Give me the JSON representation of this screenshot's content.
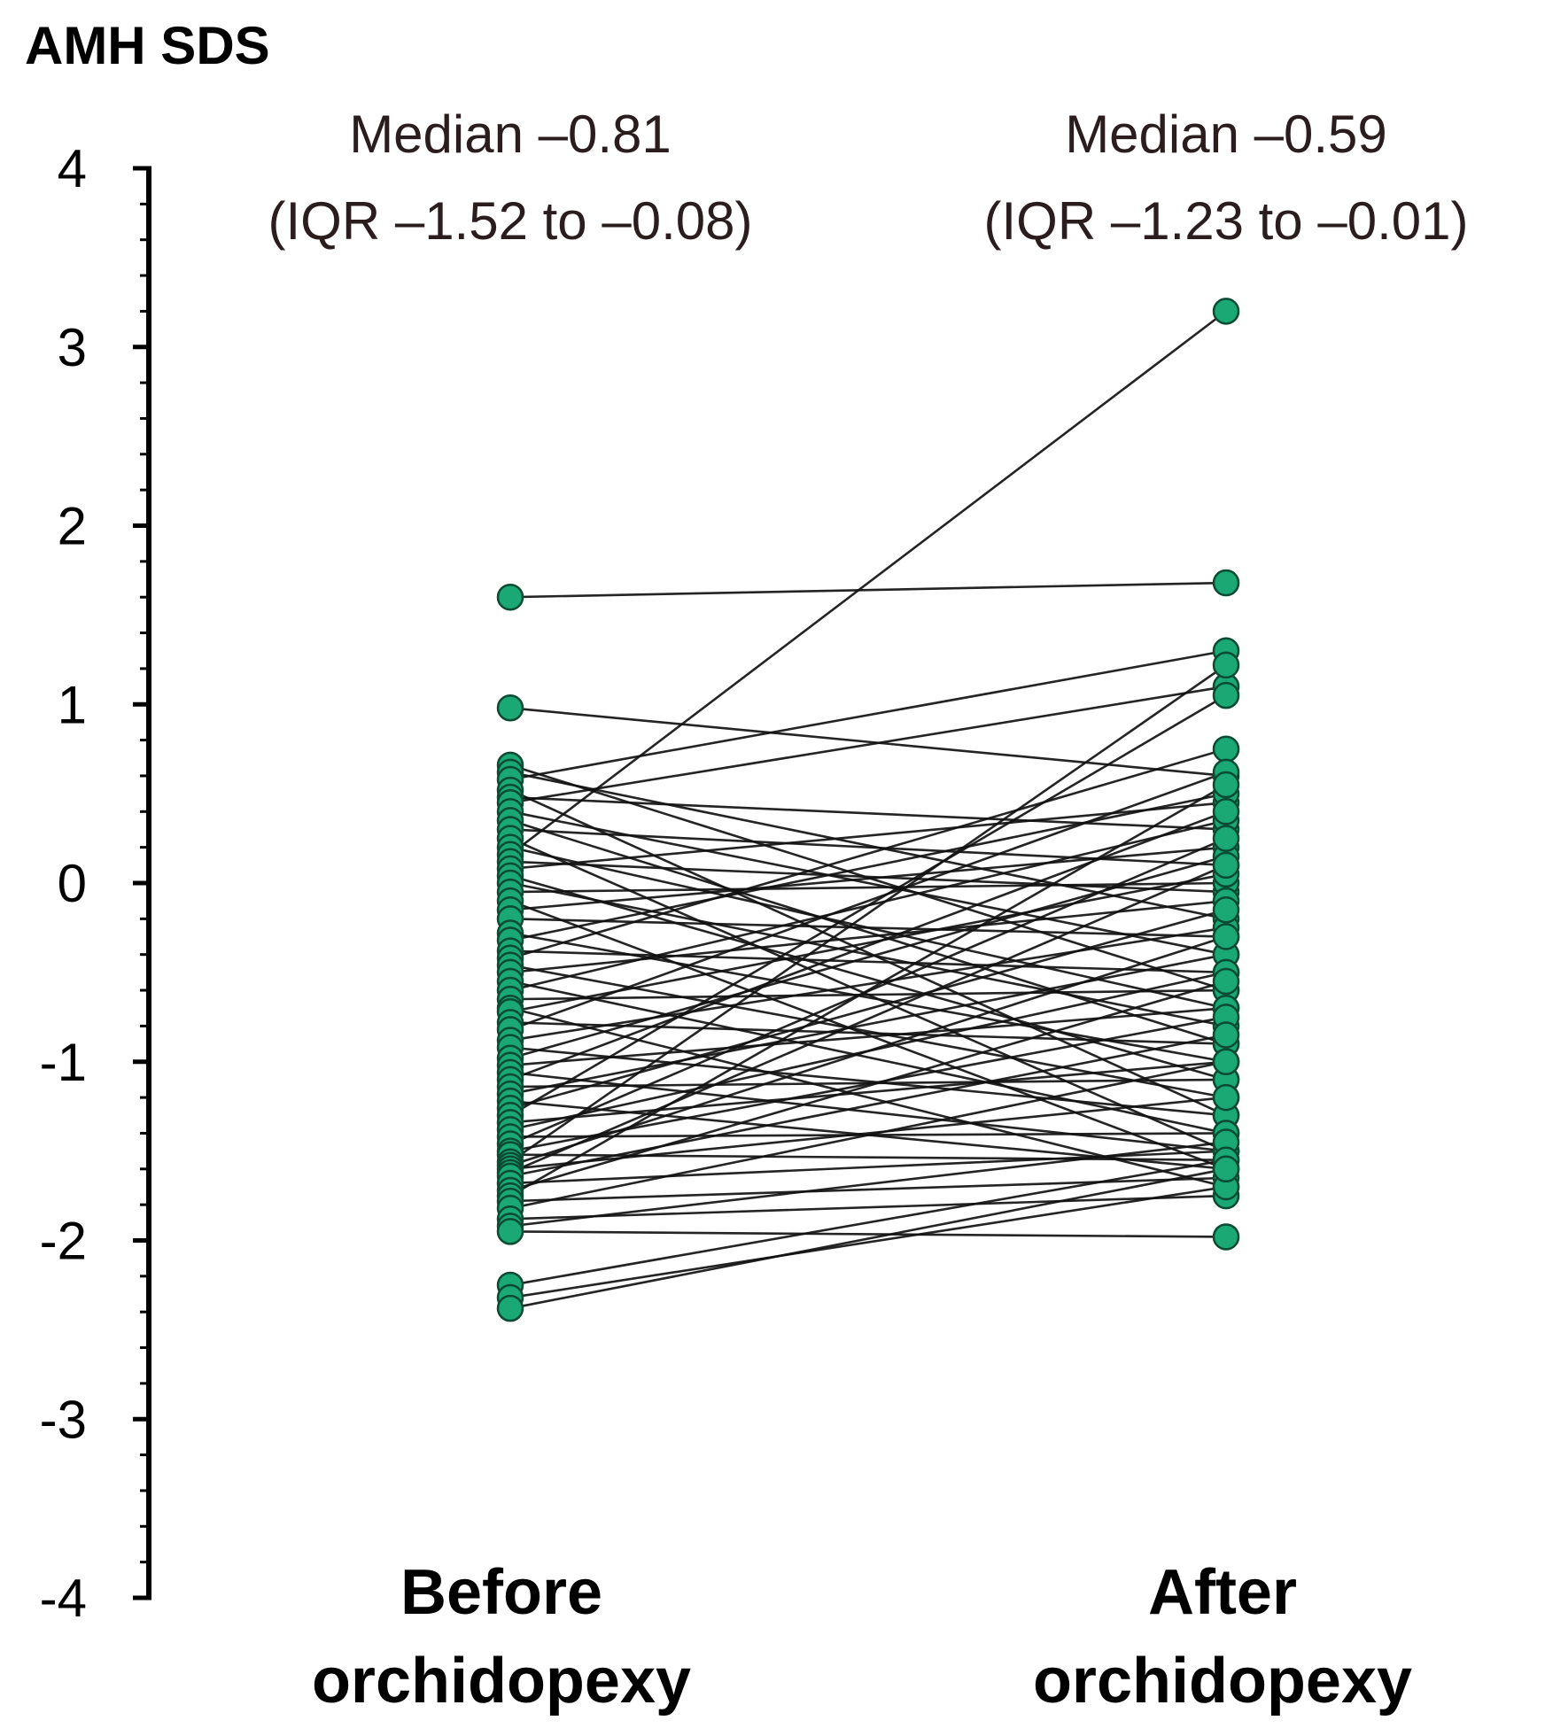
{
  "chart_data": {
    "type": "line",
    "title": "",
    "ylabel": "AMH SDS",
    "xlabel": "",
    "categories": [
      "Before\norchidopexy",
      "After\norchidopexy"
    ],
    "ylim": [
      -4,
      4
    ],
    "yticks": [
      "4",
      "3",
      "2",
      "1",
      "0",
      "-1",
      "-2",
      "-3",
      "-4"
    ],
    "annotations": [
      {
        "lines": [
          "Median –0.81",
          "(IQR –1.52 to –0.08)"
        ],
        "category": 0
      },
      {
        "lines": [
          "Median –0.59",
          "(IQR –1.23 to –0.01)"
        ],
        "category": 1
      }
    ],
    "grid": false,
    "legend": "none",
    "colors": {
      "point": "#1aa874",
      "point_edge": "#0b4a33",
      "line": "#111111",
      "axis": "#000000"
    },
    "pairs": [
      [
        1.6,
        1.68
      ],
      [
        0.98,
        0.6
      ],
      [
        0.66,
        -0.6
      ],
      [
        0.62,
        -0.2
      ],
      [
        0.58,
        1.3
      ],
      [
        0.52,
        -1.3
      ],
      [
        0.48,
        0.3
      ],
      [
        0.45,
        1.1
      ],
      [
        0.4,
        -0.4
      ],
      [
        0.35,
        -0.9
      ],
      [
        0.3,
        0.1
      ],
      [
        0.25,
        -1.5
      ],
      [
        0.2,
        -0.7
      ],
      [
        0.16,
        3.2
      ],
      [
        0.12,
        -0.05
      ],
      [
        0.08,
        0.45
      ],
      [
        0.04,
        -1.1
      ],
      [
        0.0,
        -0.8
      ],
      [
        -0.05,
        0.0
      ],
      [
        -0.1,
        -1.6
      ],
      [
        -0.15,
        0.2
      ],
      [
        -0.2,
        -0.3
      ],
      [
        -0.28,
        -1.0
      ],
      [
        -0.32,
        0.5
      ],
      [
        -0.38,
        -0.5
      ],
      [
        -0.42,
        0.75
      ],
      [
        -0.46,
        -1.2
      ],
      [
        -0.5,
        -0.1
      ],
      [
        -0.55,
        -1.4
      ],
      [
        -0.6,
        0.35
      ],
      [
        -0.65,
        -0.6
      ],
      [
        -0.7,
        -1.7
      ],
      [
        -0.72,
        0.05
      ],
      [
        -0.78,
        -0.9
      ],
      [
        -0.82,
        0.62
      ],
      [
        -0.88,
        -0.25
      ],
      [
        -0.92,
        -1.3
      ],
      [
        -0.98,
        0.15
      ],
      [
        -1.02,
        -0.7
      ],
      [
        -1.06,
        -1.5
      ],
      [
        -1.1,
        0.4
      ],
      [
        -1.14,
        -1.1
      ],
      [
        -1.18,
        -0.4
      ],
      [
        -1.22,
        -1.6
      ],
      [
        -1.26,
        -0.15
      ],
      [
        -1.3,
        1.05
      ],
      [
        -1.34,
        -1.0
      ],
      [
        -1.38,
        -0.5
      ],
      [
        -1.42,
        -1.4
      ],
      [
        -1.46,
        0.25
      ],
      [
        -1.5,
        -0.75
      ],
      [
        -1.52,
        -1.55
      ],
      [
        -1.56,
        1.22
      ],
      [
        -1.58,
        -0.3
      ],
      [
        -1.6,
        -1.2
      ],
      [
        -1.62,
        0.1
      ],
      [
        -1.64,
        -0.85
      ],
      [
        -1.68,
        -1.5
      ],
      [
        -1.72,
        -0.55
      ],
      [
        -1.75,
        0.55
      ],
      [
        -1.78,
        -1.65
      ],
      [
        -1.82,
        -1.0
      ],
      [
        -1.88,
        -1.75
      ],
      [
        -1.92,
        -1.45
      ],
      [
        -1.95,
        -1.98
      ],
      [
        -2.25,
        -1.55
      ],
      [
        -2.32,
        -1.7
      ],
      [
        -2.38,
        -1.6
      ]
    ]
  }
}
